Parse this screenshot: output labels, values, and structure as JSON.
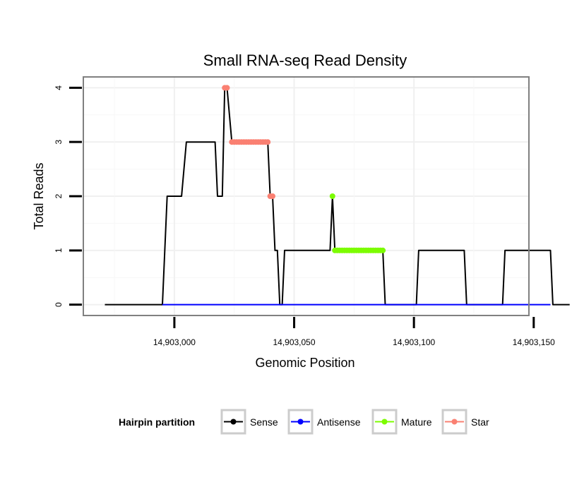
{
  "chart_data": {
    "type": "line",
    "title": "Small RNA-seq Read Density",
    "xlabel": "Genomic Position",
    "ylabel": "Total Reads",
    "xlim": [
      14902962,
      14903148
    ],
    "ylim": [
      -0.2,
      4.2
    ],
    "x_ticks": [
      14903000,
      14903050,
      14903100,
      14903150
    ],
    "x_tick_labels": [
      "14,903,000",
      "14,903,050",
      "14,903,100",
      "14,903,150"
    ],
    "y_ticks": [
      0,
      1,
      2,
      3,
      4
    ],
    "y_tick_labels": [
      "0",
      "1",
      "2",
      "3",
      "4"
    ],
    "grid": true,
    "legend": {
      "title": "Hairpin partition",
      "placement": "bottom",
      "entries": [
        {
          "name": "Sense",
          "color": "#000000"
        },
        {
          "name": "Antisense",
          "color": "#0000ff"
        },
        {
          "name": "Mature",
          "color": "#7cfc00"
        },
        {
          "name": "Star",
          "color": "#fa8072"
        }
      ]
    },
    "series": [
      {
        "name": "Sense",
        "color": "#000000",
        "kind": "line",
        "x": [
          14902971,
          14902995,
          14902997,
          14903003,
          14903005,
          14903017,
          14903018,
          14903020,
          14903021,
          14903022,
          14903024,
          14903039,
          14903040,
          14903041,
          14903042,
          14903043,
          14903044,
          14903045,
          14903046,
          14903065,
          14903066,
          14903067,
          14903068,
          14903087,
          14903088,
          14903101,
          14903102,
          14903121,
          14903122,
          14903137,
          14903138,
          14903157,
          14903158,
          14903165
        ],
        "y": [
          0,
          0,
          2,
          2,
          3,
          3,
          2,
          2,
          4,
          4,
          3,
          3,
          2,
          2,
          1,
          1,
          0,
          0,
          1,
          1,
          2,
          1,
          1,
          1,
          0,
          0,
          1,
          1,
          0,
          0,
          1,
          1,
          0,
          0
        ]
      },
      {
        "name": "Antisense",
        "color": "#0000ff",
        "kind": "line",
        "x": [
          14902995,
          14903157
        ],
        "y": [
          0,
          0
        ]
      },
      {
        "name": "Mature",
        "color": "#7cfc00",
        "kind": "points",
        "x": [
          14903066,
          14903067,
          14903068,
          14903069,
          14903070,
          14903071,
          14903072,
          14903073,
          14903074,
          14903075,
          14903076,
          14903077,
          14903078,
          14903079,
          14903080,
          14903081,
          14903082,
          14903083,
          14903084,
          14903085,
          14903086,
          14903087
        ],
        "y": [
          2,
          1,
          1,
          1,
          1,
          1,
          1,
          1,
          1,
          1,
          1,
          1,
          1,
          1,
          1,
          1,
          1,
          1,
          1,
          1,
          1,
          1
        ]
      },
      {
        "name": "Star",
        "color": "#fa8072",
        "kind": "points",
        "x": [
          14903021,
          14903022,
          14903024,
          14903025,
          14903026,
          14903027,
          14903028,
          14903029,
          14903030,
          14903031,
          14903032,
          14903033,
          14903034,
          14903035,
          14903036,
          14903037,
          14903038,
          14903039,
          14903040,
          14903041
        ],
        "y": [
          4,
          4,
          3,
          3,
          3,
          3,
          3,
          3,
          3,
          3,
          3,
          3,
          3,
          3,
          3,
          3,
          3,
          3,
          2,
          2
        ]
      }
    ]
  }
}
